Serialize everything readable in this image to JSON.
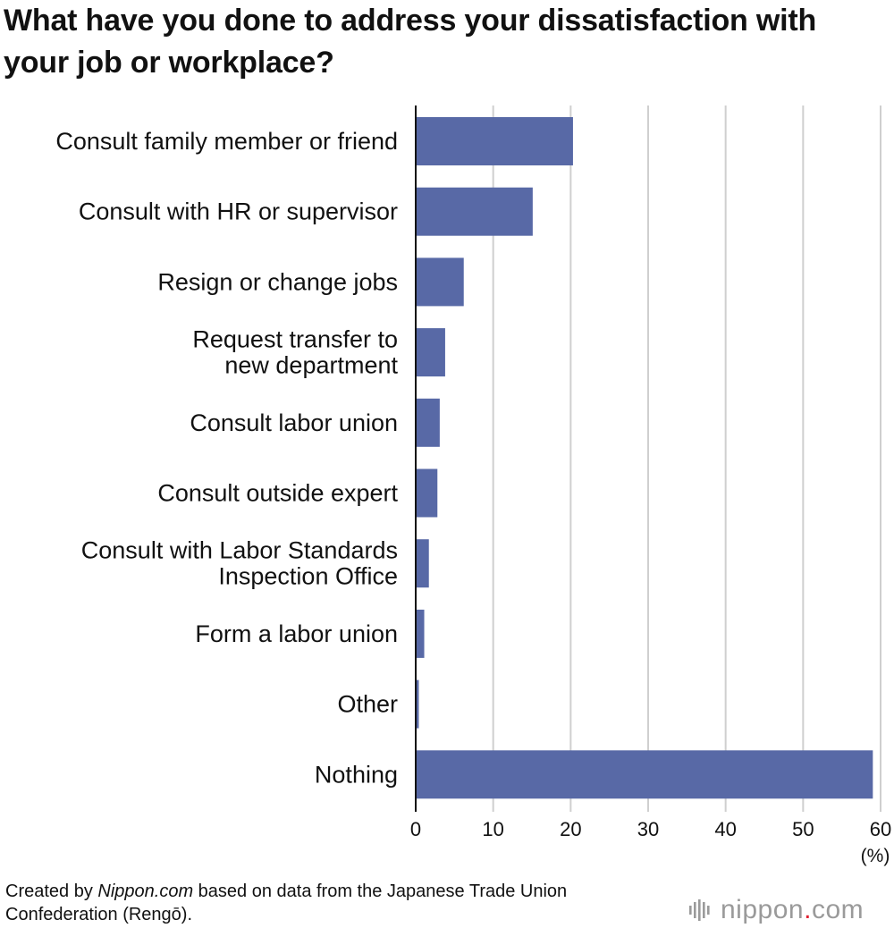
{
  "title": "What have you done to address your dissatisfaction with your job or workplace?",
  "footer": {
    "prefix": "Created by ",
    "source_name": "Nippon.com",
    "suffix": " based on data from the Japanese Trade Union Confederation (Rengō)."
  },
  "logo": {
    "name": "nippon",
    "dot": ".",
    "tld": "com"
  },
  "colors": {
    "bar": "#5869a6",
    "grid": "#cfcfcf",
    "axis": "#111111",
    "text": "#111111"
  },
  "chart_data": {
    "type": "bar",
    "orientation": "horizontal",
    "title": "What have you done to address your dissatisfaction with your job or workplace?",
    "xlabel": "(%)",
    "ylabel": "",
    "categories": [
      [
        "Consult family member or friend"
      ],
      [
        "Consult with HR or supervisor"
      ],
      [
        "Resign or change jobs"
      ],
      [
        "Request transfer to",
        "new department"
      ],
      [
        "Consult labor union"
      ],
      [
        "Consult outside expert"
      ],
      [
        "Consult with Labor Standards",
        "Inspection Office"
      ],
      [
        "Form a labor union"
      ],
      [
        "Other"
      ],
      [
        "Nothing"
      ]
    ],
    "values": [
      20.3,
      15.1,
      6.2,
      3.8,
      3.1,
      2.8,
      1.7,
      1.1,
      0.4,
      59.0
    ],
    "xlim": [
      0,
      60
    ],
    "xticks": [
      0,
      10,
      20,
      30,
      40,
      50,
      60
    ],
    "grid": true,
    "legend": "none"
  }
}
